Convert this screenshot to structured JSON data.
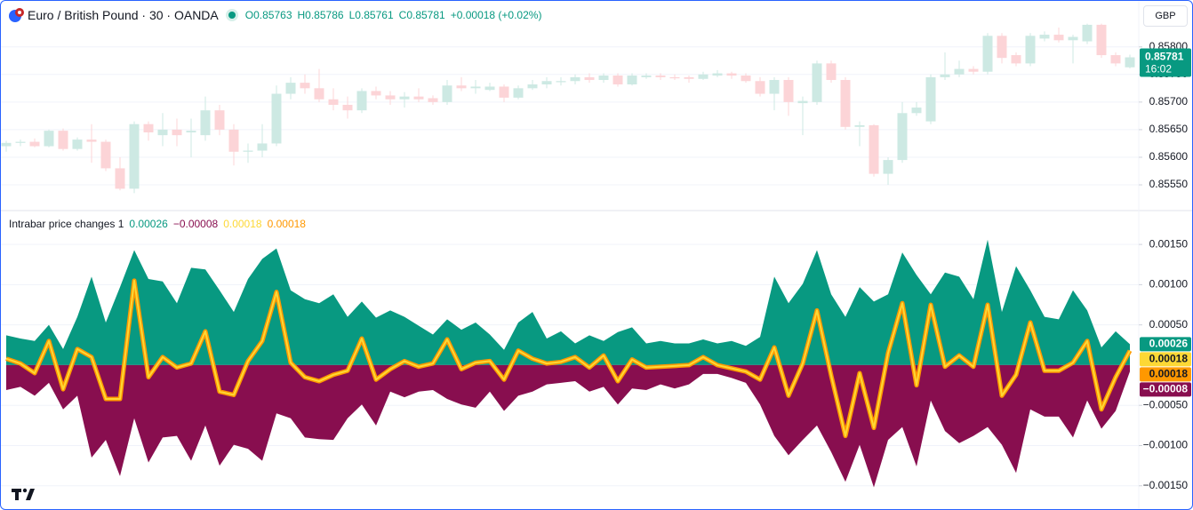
{
  "header": {
    "symbol": "Euro / British Pound · 30 · OANDA",
    "ohlc": [
      {
        "label": "O",
        "value": "0.85763"
      },
      {
        "label": "H",
        "value": "0.85786"
      },
      {
        "label": "L",
        "value": "0.85761"
      },
      {
        "label": "C",
        "value": "0.85781"
      }
    ],
    "change": "+0.00018 (+0.02%)",
    "currency": "GBP"
  },
  "price_badge": {
    "price": "0.85781",
    "countdown": "16:02",
    "color": "#089981"
  },
  "indicator": {
    "title": "Intrabar price changes 1"
  },
  "chart_data": [
    {
      "type": "candlestick",
      "up_color": "#cde9e3",
      "down_color": "#fcd4d7",
      "open": [
        0.8562,
        0.85626,
        0.85628,
        0.8562,
        0.85648,
        0.85615,
        0.85632,
        0.85628,
        0.8558,
        0.85543,
        0.8566,
        0.8564,
        0.8565,
        0.85645,
        0.8564,
        0.85685,
        0.8565,
        0.8561,
        0.85612,
        0.85625,
        0.85715,
        0.85735,
        0.85725,
        0.85705,
        0.85695,
        0.85685,
        0.8572,
        0.85712,
        0.85705,
        0.8571,
        0.85707,
        0.857,
        0.8573,
        0.85725,
        0.85722,
        0.85728,
        0.85708,
        0.85725,
        0.85732,
        0.85736,
        0.85738,
        0.85745,
        0.8574,
        0.85748,
        0.85732,
        0.85745,
        0.85748,
        0.85745,
        0.85745,
        0.85742,
        0.85748,
        0.85752,
        0.85748,
        0.85738,
        0.85715,
        0.8574,
        0.85698,
        0.857,
        0.8577,
        0.8574,
        0.85655,
        0.85658,
        0.8557,
        0.85595,
        0.8568,
        0.85665,
        0.85745,
        0.8575,
        0.8576,
        0.85755,
        0.8582,
        0.85785,
        0.8577,
        0.85815,
        0.85822,
        0.85812,
        0.8581,
        0.8584,
        0.85785,
        0.85763
      ],
      "high": [
        0.8563,
        0.85632,
        0.85634,
        0.8565,
        0.85652,
        0.85636,
        0.8566,
        0.85632,
        0.856,
        0.85665,
        0.85665,
        0.8568,
        0.8567,
        0.8567,
        0.8571,
        0.85695,
        0.8566,
        0.85625,
        0.8566,
        0.8573,
        0.85745,
        0.8575,
        0.8576,
        0.85725,
        0.8571,
        0.85725,
        0.85728,
        0.8572,
        0.85718,
        0.85725,
        0.85712,
        0.8574,
        0.85745,
        0.8574,
        0.85735,
        0.85732,
        0.8573,
        0.8574,
        0.85745,
        0.85745,
        0.8575,
        0.85752,
        0.85752,
        0.85752,
        0.85752,
        0.85752,
        0.85752,
        0.8575,
        0.85748,
        0.85755,
        0.85758,
        0.85755,
        0.85752,
        0.85745,
        0.85745,
        0.85745,
        0.8571,
        0.85775,
        0.85775,
        0.85745,
        0.85665,
        0.8566,
        0.856,
        0.857,
        0.857,
        0.8575,
        0.8579,
        0.85775,
        0.85765,
        0.85825,
        0.85825,
        0.8579,
        0.85825,
        0.85828,
        0.85835,
        0.85822,
        0.85842,
        0.85842,
        0.8579,
        0.85786
      ],
      "low": [
        0.8561,
        0.8562,
        0.85618,
        0.85618,
        0.85612,
        0.85612,
        0.8559,
        0.85575,
        0.8554,
        0.85535,
        0.8563,
        0.8562,
        0.8562,
        0.856,
        0.8563,
        0.8564,
        0.85585,
        0.8559,
        0.856,
        0.8562,
        0.85705,
        0.85715,
        0.857,
        0.85685,
        0.8567,
        0.8568,
        0.85705,
        0.85695,
        0.8569,
        0.857,
        0.85695,
        0.85695,
        0.8572,
        0.85715,
        0.8572,
        0.857,
        0.85705,
        0.85722,
        0.85725,
        0.8573,
        0.85732,
        0.85735,
        0.85735,
        0.85728,
        0.8573,
        0.85742,
        0.8574,
        0.8574,
        0.85735,
        0.8574,
        0.85745,
        0.85742,
        0.85735,
        0.8571,
        0.85685,
        0.85675,
        0.8564,
        0.85695,
        0.85735,
        0.8565,
        0.8562,
        0.85565,
        0.8555,
        0.8559,
        0.85675,
        0.8566,
        0.8574,
        0.85745,
        0.8575,
        0.8575,
        0.8577,
        0.85765,
        0.85765,
        0.8581,
        0.85808,
        0.8577,
        0.85805,
        0.8578,
        0.85765,
        0.85761
      ],
      "close": [
        0.85626,
        0.85628,
        0.8562,
        0.85648,
        0.85615,
        0.85632,
        0.85628,
        0.8558,
        0.85543,
        0.8566,
        0.85645,
        0.8565,
        0.8564,
        0.85648,
        0.85685,
        0.8565,
        0.8561,
        0.85612,
        0.85625,
        0.85715,
        0.85735,
        0.85725,
        0.85705,
        0.85695,
        0.85685,
        0.8572,
        0.85712,
        0.85705,
        0.8571,
        0.85705,
        0.857,
        0.8573,
        0.85725,
        0.85728,
        0.85728,
        0.85708,
        0.85725,
        0.85732,
        0.85738,
        0.85738,
        0.85745,
        0.8574,
        0.85748,
        0.85732,
        0.85748,
        0.85748,
        0.85745,
        0.85743,
        0.85742,
        0.8575,
        0.85752,
        0.85748,
        0.85738,
        0.85715,
        0.8574,
        0.857,
        0.85702,
        0.8577,
        0.8574,
        0.85655,
        0.85658,
        0.8557,
        0.85595,
        0.8568,
        0.8569,
        0.85745,
        0.8575,
        0.8576,
        0.85755,
        0.8582,
        0.8578,
        0.8577,
        0.8582,
        0.85822,
        0.85812,
        0.85818,
        0.8584,
        0.85785,
        0.8577,
        0.85781
      ],
      "ylim": [
        0.85505,
        0.85835
      ],
      "yticks": [
        {
          "value": 0.858,
          "label": "0.85800"
        },
        {
          "value": 0.8575,
          "label": "0.85750"
        },
        {
          "value": 0.857,
          "label": "0.85700"
        },
        {
          "value": 0.8565,
          "label": "0.85650"
        },
        {
          "value": 0.856,
          "label": "0.85600"
        },
        {
          "value": 0.8555,
          "label": "0.85550"
        }
      ],
      "grid": true
    },
    {
      "type": "area",
      "series": [
        {
          "color": "#089981",
          "last_label": "0.00026",
          "values": [
            0.00037,
            0.00033,
            0.0003,
            0.0005,
            0.0002,
            0.0006,
            0.0011,
            0.00053,
            0.00097,
            0.00143,
            0.00107,
            0.00104,
            0.00077,
            0.00121,
            0.00119,
            0.00093,
            0.00066,
            0.00107,
            0.00132,
            0.00145,
            0.00093,
            0.00082,
            0.00077,
            0.00088,
            0.0006,
            0.00079,
            0.00059,
            0.00068,
            0.0006,
            0.00049,
            0.00038,
            0.00057,
            0.00044,
            0.00053,
            0.00038,
            0.00019,
            0.00053,
            0.00066,
            0.00033,
            0.00042,
            0.00027,
            0.00037,
            0.0003,
            0.00041,
            0.00047,
            0.00027,
            0.0003,
            0.00027,
            0.00027,
            0.00032,
            0.00027,
            0.0003,
            0.00024,
            0.00035,
            0.0011,
            0.00077,
            0.00101,
            0.00143,
            0.00088,
            0.0006,
            0.00097,
            0.00079,
            0.00088,
            0.0014,
            0.00112,
            0.00088,
            0.00115,
            0.0011,
            0.00082,
            0.00156,
            0.00066,
            0.00123,
            0.00093,
            0.0006,
            0.00057,
            0.00093,
            0.00068,
            0.00022,
            0.00042,
            0.00026
          ]
        },
        {
          "color": "#880e4f",
          "last_label": "−0.00008",
          "values": [
            -0.00031,
            -0.00027,
            -0.00038,
            -0.00022,
            -0.00055,
            -0.00038,
            -0.00115,
            -0.00093,
            -0.00138,
            -0.00066,
            -0.00121,
            -0.0009,
            -0.00088,
            -0.00119,
            -0.00075,
            -0.00125,
            -0.00099,
            -0.00104,
            -0.00119,
            -0.0006,
            -0.00066,
            -0.0009,
            -0.00092,
            -0.00093,
            -0.00066,
            -0.00049,
            -0.00075,
            -0.00033,
            -0.0004,
            -0.00033,
            -0.00031,
            -0.00042,
            -0.00049,
            -0.00053,
            -0.00033,
            -0.00057,
            -0.00038,
            -0.00033,
            -0.00024,
            -0.00022,
            -0.0002,
            -0.00033,
            -0.00027,
            -0.00049,
            -0.00029,
            -0.00031,
            -0.00024,
            -0.00029,
            -0.00024,
            -0.00011,
            -0.00011,
            -0.00016,
            -0.00022,
            -0.00049,
            -0.00088,
            -0.00112,
            -0.00093,
            -0.00075,
            -0.00108,
            -0.00145,
            -0.00099,
            -0.00152,
            -0.00093,
            -0.00077,
            -0.00126,
            -0.00044,
            -0.00082,
            -0.00097,
            -0.00088,
            -0.00077,
            -0.00099,
            -0.00134,
            -0.00055,
            -0.00064,
            -0.00064,
            -0.0009,
            -0.00044,
            -0.00079,
            -0.00057,
            -8e-05
          ]
        },
        {
          "color": "#fdd835",
          "last_label": "0.00018",
          "values": [
            8e-05,
            2e-05,
            -0.0001,
            0.0003,
            -0.0003,
            0.0002,
            0.0001,
            -0.00042,
            -0.00042,
            0.00105,
            -0.00015,
            0.0001,
            -3e-05,
            2e-05,
            0.00042,
            -0.00033,
            -0.00037,
            5e-05,
            0.0003,
            0.00091,
            3e-05,
            -0.00015,
            -0.0002,
            -0.00012,
            -7e-05,
            0.00033,
            -0.00018,
            -5e-05,
            5e-05,
            -2e-05,
            2e-05,
            0.00032,
            -5e-05,
            3e-05,
            5e-05,
            -0.00018,
            0.00018,
            8e-05,
            2e-05,
            4e-05,
            0.0001,
            -3e-05,
            0.00012,
            -0.0002,
            7e-05,
            -3e-05,
            -2e-05,
            -1e-05,
            0,
            0.0001,
            0,
            -4e-05,
            -8e-05,
            -0.00018,
            0.00022,
            -0.00038,
            2e-05,
            0.00068,
            -0.00013,
            -0.00088,
            -0.0001,
            -0.00078,
            0.00015,
            0.00077,
            -0.00025,
            0.00075,
            -2e-05,
            0.00012,
            -2e-05,
            0.00075,
            -0.00038,
            -0.00012,
            0.00053,
            -7e-05,
            -7e-05,
            3e-05,
            0.0003,
            -0.00055,
            -0.00015,
            0.00018
          ]
        },
        {
          "color": "#ff9800",
          "last_label": "0.00018",
          "values": [
            8e-05,
            2e-05,
            -0.0001,
            0.0003,
            -0.0003,
            0.0002,
            0.0001,
            -0.00042,
            -0.00042,
            0.00105,
            -0.00015,
            0.0001,
            -3e-05,
            2e-05,
            0.00042,
            -0.00033,
            -0.00037,
            5e-05,
            0.0003,
            0.00091,
            3e-05,
            -0.00015,
            -0.0002,
            -0.00012,
            -7e-05,
            0.00033,
            -0.00018,
            -5e-05,
            5e-05,
            -2e-05,
            2e-05,
            0.00032,
            -5e-05,
            3e-05,
            5e-05,
            -0.00018,
            0.00018,
            8e-05,
            2e-05,
            4e-05,
            0.0001,
            -3e-05,
            0.00012,
            -0.0002,
            7e-05,
            -3e-05,
            -2e-05,
            -1e-05,
            0,
            0.0001,
            0,
            -4e-05,
            -8e-05,
            -0.00018,
            0.00022,
            -0.00038,
            2e-05,
            0.00068,
            -0.00013,
            -0.00088,
            -0.0001,
            -0.00078,
            0.00015,
            0.00077,
            -0.00025,
            0.00075,
            -2e-05,
            0.00012,
            -2e-05,
            0.00075,
            -0.00038,
            -0.00012,
            0.00053,
            -7e-05,
            -7e-05,
            3e-05,
            0.0003,
            -0.00055,
            -0.00015,
            0.00018
          ]
        }
      ],
      "ylim": [
        -0.00179,
        0.00191
      ],
      "yticks": [
        {
          "value": 0.0015,
          "label": "0.00150"
        },
        {
          "value": 0.001,
          "label": "0.00100"
        },
        {
          "value": 0.0005,
          "label": "0.00050"
        },
        {
          "value": -0.0005,
          "label": "−0.00050"
        },
        {
          "value": -0.001,
          "label": "−0.00100"
        },
        {
          "value": -0.0015,
          "label": "−0.00150"
        }
      ],
      "grid": true
    }
  ]
}
